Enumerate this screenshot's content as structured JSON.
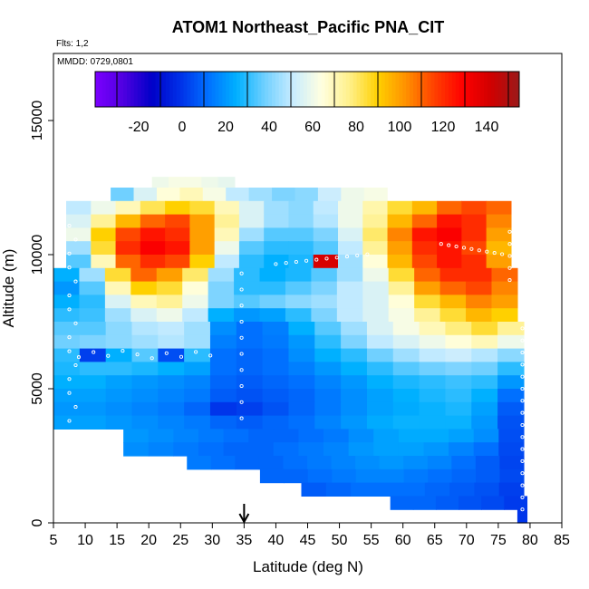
{
  "chart_data": {
    "type": "heatmap",
    "title": "ATOM1 Northeast_Pacific PNA_CIT",
    "flights_label": "Flts: 1,2",
    "date_label": "MMDD: 0729,0801",
    "xlabel": "Latitude (deg N)",
    "ylabel": "Altitude (m)",
    "xlim": [
      5,
      85
    ],
    "ylim": [
      0,
      17500
    ],
    "x_ticks": [
      "5",
      "10",
      "15",
      "20",
      "25",
      "30",
      "35",
      "40",
      "45",
      "50",
      "55",
      "60",
      "65",
      "70",
      "75",
      "80",
      "85"
    ],
    "y_ticks": [
      "0",
      "5000",
      "10000",
      "15000"
    ],
    "colorbar": {
      "range": [
        -40,
        155
      ],
      "tick_labels": [
        "-20",
        "0",
        "20",
        "40",
        "60",
        "80",
        "100",
        "120",
        "140"
      ],
      "colors": [
        "#7b00ff",
        "#4f00e0",
        "#0000c8",
        "#0030e8",
        "#0070ff",
        "#00b0ff",
        "#70d0ff",
        "#c8ecff",
        "#ffffe0",
        "#fff08a",
        "#ffd000",
        "#ff9000",
        "#ff4000",
        "#ff0000",
        "#d00000",
        "#9a1a1a"
      ]
    },
    "arrow_marker": {
      "latitude": 35
    },
    "rows": [
      {
        "alt": [
          12500,
          12900
        ],
        "lat": [
          20.5,
          33.5
        ],
        "values": [
          60,
          62,
          62,
          60,
          58
        ]
      },
      {
        "alt": [
          12000,
          12500
        ],
        "lat": [
          14,
          57.5
        ],
        "values": [
          38,
          55,
          65,
          70,
          62,
          50,
          45,
          40,
          42,
          52,
          60,
          62
        ]
      },
      {
        "alt": [
          11500,
          12000
        ],
        "lat": [
          7,
          77
        ],
        "values": [
          50,
          60,
          70,
          82,
          90,
          85,
          70,
          55,
          45,
          42,
          50,
          60,
          72,
          85,
          95,
          110,
          115,
          110
        ]
      },
      {
        "alt": [
          11000,
          11500
        ],
        "lat": [
          7,
          77
        ],
        "values": [
          55,
          75,
          95,
          110,
          115,
          100,
          75,
          55,
          45,
          42,
          48,
          60,
          75,
          95,
          110,
          125,
          120,
          105
        ]
      },
      {
        "alt": [
          10500,
          11000
        ],
        "lat": [
          7,
          77
        ],
        "values": [
          60,
          90,
          115,
          125,
          120,
          100,
          70,
          45,
          35,
          35,
          40,
          55,
          80,
          105,
          125,
          130,
          120,
          100
        ]
      },
      {
        "alt": [
          10000,
          10500
        ],
        "lat": [
          7,
          77
        ],
        "values": [
          45,
          85,
          120,
          130,
          125,
          100,
          60,
          35,
          30,
          30,
          35,
          50,
          75,
          100,
          120,
          125,
          115,
          95
        ]
      },
      {
        "alt": [
          9500,
          10000
        ],
        "lat": [
          7,
          77
        ],
        "values": [
          35,
          70,
          110,
          120,
          115,
          90,
          50,
          30,
          25,
          28,
          140,
          45,
          65,
          95,
          115,
          125,
          120,
          100
        ]
      },
      {
        "alt": [
          9000,
          9500
        ],
        "lat": [
          5,
          78
        ],
        "values": [
          25,
          45,
          85,
          110,
          100,
          80,
          45,
          30,
          25,
          28,
          35,
          45,
          60,
          85,
          110,
          120,
          120,
          110
        ]
      },
      {
        "alt": [
          8500,
          9000
        ],
        "lat": [
          5,
          78
        ],
        "values": [
          20,
          35,
          70,
          90,
          85,
          65,
          40,
          30,
          30,
          35,
          40,
          50,
          55,
          75,
          100,
          110,
          115,
          105
        ]
      },
      {
        "alt": [
          8000,
          8500
        ],
        "lat": [
          5,
          78
        ],
        "values": [
          25,
          30,
          55,
          70,
          75,
          60,
          40,
          35,
          38,
          42,
          45,
          50,
          55,
          65,
          85,
          95,
          105,
          100
        ]
      },
      {
        "alt": [
          7500,
          8000
        ],
        "lat": [
          5,
          78
        ],
        "values": [
          30,
          32,
          45,
          55,
          60,
          50,
          25,
          20,
          22,
          30,
          40,
          50,
          55,
          62,
          75,
          85,
          95,
          90
        ]
      },
      {
        "alt": [
          7000,
          7500
        ],
        "lat": [
          5,
          79
        ],
        "values": [
          35,
          35,
          42,
          48,
          50,
          45,
          18,
          12,
          15,
          25,
          35,
          45,
          55,
          62,
          70,
          78,
          85,
          75
        ]
      },
      {
        "alt": [
          6500,
          7000
        ],
        "lat": [
          5,
          79
        ],
        "values": [
          38,
          40,
          42,
          45,
          48,
          45,
          15,
          12,
          14,
          20,
          30,
          40,
          50,
          55,
          60,
          65,
          70,
          60
        ]
      },
      {
        "alt": [
          6000,
          6500
        ],
        "lat": [
          5,
          79
        ],
        "values": [
          30,
          2,
          25,
          35,
          5,
          30,
          12,
          10,
          12,
          18,
          25,
          30,
          38,
          45,
          50,
          52,
          48,
          42
        ]
      },
      {
        "alt": [
          5500,
          6000
        ],
        "lat": [
          5,
          79
        ],
        "values": [
          28,
          30,
          30,
          28,
          25,
          22,
          12,
          10,
          12,
          15,
          20,
          25,
          30,
          35,
          38,
          40,
          38,
          30
        ]
      },
      {
        "alt": [
          5000,
          5500
        ],
        "lat": [
          5,
          79
        ],
        "values": [
          25,
          25,
          22,
          20,
          18,
          16,
          10,
          8,
          10,
          12,
          16,
          20,
          25,
          28,
          30,
          32,
          30,
          20
        ]
      },
      {
        "alt": [
          4500,
          5000
        ],
        "lat": [
          5,
          79
        ],
        "values": [
          22,
          22,
          20,
          18,
          16,
          14,
          8,
          6,
          8,
          10,
          14,
          18,
          22,
          25,
          28,
          30,
          25,
          12
        ]
      },
      {
        "alt": [
          4000,
          4500
        ],
        "lat": [
          5,
          79
        ],
        "values": [
          20,
          20,
          18,
          16,
          14,
          10,
          0,
          2,
          6,
          10,
          14,
          18,
          22,
          24,
          26,
          28,
          22,
          8
        ]
      },
      {
        "alt": [
          3500,
          4000
        ],
        "lat": [
          5,
          79
        ],
        "values": [
          22,
          22,
          20,
          18,
          16,
          14,
          10,
          8,
          10,
          12,
          16,
          20,
          24,
          26,
          26,
          26,
          20,
          6
        ]
      },
      {
        "alt": [
          3000,
          3500
        ],
        "lat": [
          16,
          79
        ],
        "values": [
          20,
          18,
          16,
          14,
          12,
          10,
          10,
          12,
          14,
          18,
          22,
          24,
          24,
          22,
          18,
          5
        ]
      },
      {
        "alt": [
          2500,
          3000
        ],
        "lat": [
          16,
          79
        ],
        "values": [
          18,
          16,
          14,
          12,
          10,
          10,
          12,
          14,
          16,
          20,
          22,
          22,
          20,
          16,
          12,
          4
        ]
      },
      {
        "alt": [
          2000,
          2500
        ],
        "lat": [
          26,
          79
        ],
        "values": [
          14,
          12,
          10,
          10,
          12,
          14,
          16,
          18,
          20,
          18,
          16,
          12,
          8,
          3
        ]
      },
      {
        "alt": [
          1500,
          2000
        ],
        "lat": [
          37.5,
          79
        ],
        "values": [
          10,
          10,
          12,
          14,
          16,
          16,
          14,
          12,
          10,
          8,
          4
        ]
      },
      {
        "alt": [
          1000,
          1500
        ],
        "lat": [
          44,
          79
        ],
        "values": [
          8,
          10,
          12,
          12,
          12,
          10,
          8,
          6,
          2
        ]
      },
      {
        "alt": [
          500,
          1000
        ],
        "lat": [
          58,
          79.5
        ],
        "values": [
          10,
          10,
          8,
          6,
          4,
          1
        ]
      },
      {
        "alt": [
          0,
          500
        ],
        "lat": [
          78,
          79.5
        ],
        "values": [
          0
        ]
      }
    ]
  }
}
